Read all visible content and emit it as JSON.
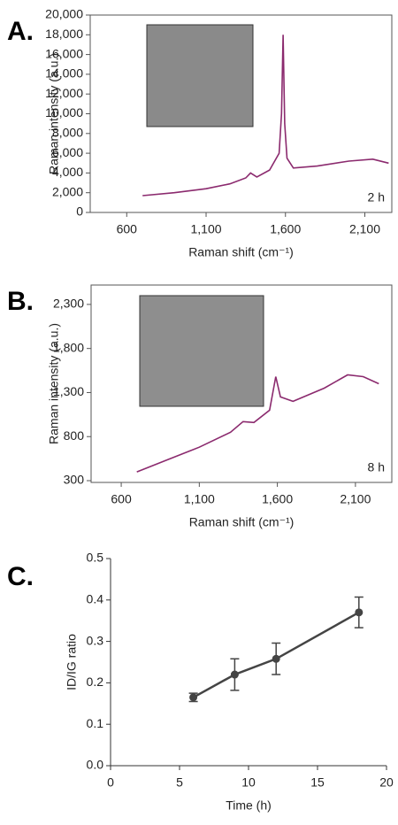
{
  "chart_data": [
    {
      "type": "line",
      "label": "A.",
      "annotation": "2 h",
      "x_label": "Raman shift (cm⁻¹)",
      "y_label": "Raman intensity (a.u.)",
      "color": "#8b2a6e",
      "x": [
        700,
        900,
        1100,
        1250,
        1350,
        1380,
        1420,
        1500,
        1560,
        1575,
        1585,
        1595,
        1610,
        1650,
        1800,
        2000,
        2150,
        2250
      ],
      "values": [
        1700,
        2000,
        2400,
        2900,
        3500,
        4000,
        3600,
        4300,
        6000,
        10000,
        18000,
        9000,
        5500,
        4500,
        4700,
        5200,
        5400,
        5000
      ],
      "xlim": [
        370,
        2270
      ],
      "ylim": [
        0,
        20000
      ],
      "xticks": [
        600,
        {
          "value": 1100,
          "label": "1,100"
        },
        {
          "value": 1600,
          "label": "1,600"
        },
        {
          "value": 2100,
          "label": "2,100"
        }
      ],
      "yticks": [
        0,
        {
          "value": 2000,
          "label": "2,000"
        },
        {
          "value": 4000,
          "label": "4,000"
        },
        {
          "value": 6000,
          "label": "6,000"
        },
        {
          "value": 8000,
          "label": "8,000"
        },
        {
          "value": 10000,
          "label": "10,000"
        },
        {
          "value": 12000,
          "label": "12,000"
        },
        {
          "value": 14000,
          "label": "14,000"
        },
        {
          "value": 16000,
          "label": "16,000"
        },
        {
          "value": 18000,
          "label": "18,000"
        },
        {
          "value": 20000,
          "label": "20,000"
        }
      ]
    },
    {
      "type": "line",
      "label": "B.",
      "annotation": "8 h",
      "x_label": "Raman shift (cm⁻¹)",
      "y_label": "Raman intensity (a.u.)",
      "color": "#8b2a6e",
      "x": [
        700,
        900,
        1100,
        1300,
        1380,
        1450,
        1550,
        1590,
        1620,
        1700,
        1900,
        2050,
        2150,
        2250
      ],
      "values": [
        400,
        540,
        680,
        850,
        970,
        960,
        1100,
        1480,
        1250,
        1200,
        1350,
        1500,
        1480,
        1400
      ],
      "xlim": [
        407,
        2333
      ],
      "ylim": [
        280,
        2520
      ],
      "xticks": [
        600,
        {
          "value": 1100,
          "label": "1,100"
        },
        {
          "value": 1600,
          "label": "1,600"
        },
        {
          "value": 2100,
          "label": "2,100"
        }
      ],
      "yticks": [
        300,
        800,
        {
          "value": 1300,
          "label": "1,300"
        },
        {
          "value": 1800,
          "label": "1,800"
        },
        {
          "value": 2300,
          "label": "2,300"
        }
      ]
    },
    {
      "type": "errorline",
      "label": "C.",
      "x_label": "Time (h)",
      "y_label": "ID/IG ratio",
      "color": "#444444",
      "x": [
        6,
        9,
        12,
        18
      ],
      "values": [
        0.165,
        0.22,
        0.258,
        0.37
      ],
      "errors": [
        0.01,
        0.038,
        0.038,
        0.037
      ],
      "xlim": [
        0,
        20
      ],
      "ylim": [
        0,
        0.5
      ],
      "xticks": [
        0,
        5,
        10,
        15,
        20
      ],
      "yticks": [
        {
          "value": 0,
          "label": "0.0"
        },
        0.1,
        0.2,
        0.3,
        0.4,
        0.5
      ]
    }
  ]
}
